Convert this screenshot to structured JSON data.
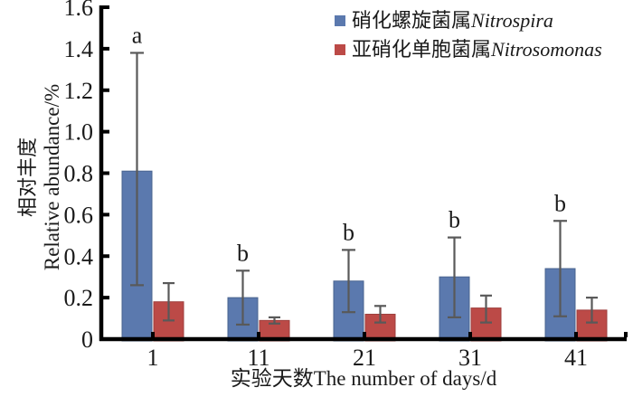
{
  "figure": {
    "background": "#ffffff",
    "text_color": "#1a1a1a"
  },
  "chart_data": {
    "type": "bar",
    "title": "",
    "categories": [
      "1",
      "11",
      "21",
      "31",
      "41"
    ],
    "series": [
      {
        "name_cn": "硝化螺旋菌属",
        "name_latin": "Nitrospira",
        "color": "#5B79AE",
        "border_color": "#4A648F",
        "values": [
          0.81,
          0.2,
          0.28,
          0.3,
          0.34
        ],
        "error_low": [
          0.26,
          0.07,
          0.13,
          0.105,
          0.11
        ],
        "error_high": [
          1.38,
          0.33,
          0.43,
          0.49,
          0.57
        ]
      },
      {
        "name_cn": "亚硝化单胞菌属",
        "name_latin": "Nitrosomonas",
        "color": "#BC4A47",
        "border_color": "#9E3F3D",
        "values": [
          0.18,
          0.09,
          0.12,
          0.15,
          0.14
        ],
        "error_low": [
          0.09,
          0.075,
          0.08,
          0.08,
          0.08
        ],
        "error_high": [
          0.27,
          0.105,
          0.16,
          0.21,
          0.2
        ]
      }
    ],
    "significance_letters": [
      "a",
      "b",
      "b",
      "b",
      "b"
    ],
    "xlabel": "实验天数The number of days/d",
    "ylabel_cn": "相对丰度",
    "ylabel_en": "Relative abundance/%",
    "ylim": [
      0,
      1.6
    ],
    "y_tick_labels": [
      "0",
      "0.2",
      "0.4",
      "0.6",
      "0.8",
      "1.0",
      "1.2",
      "1.4",
      "1.6"
    ],
    "grid": false,
    "legend_position": "top-right",
    "error_bar_color": "#595959",
    "axis_color": "#000000"
  }
}
